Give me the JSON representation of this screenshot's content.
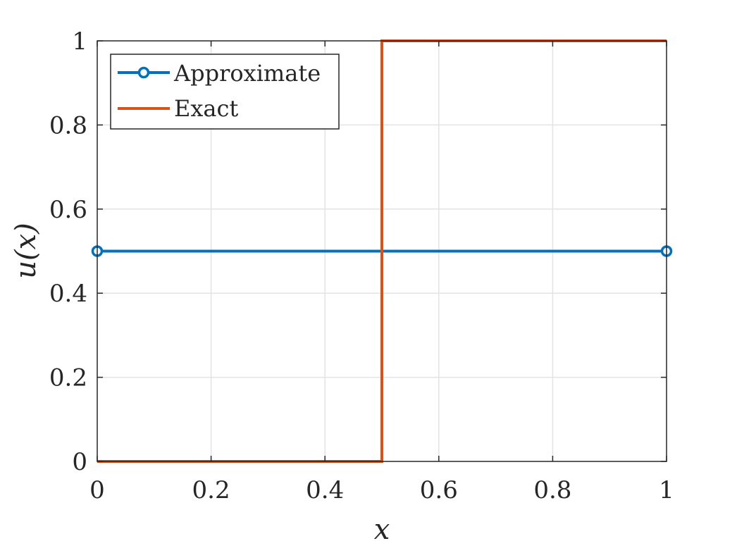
{
  "chart_data": {
    "type": "line",
    "xlabel": "x",
    "ylabel": "u(x)",
    "xlim": [
      0,
      1
    ],
    "ylim": [
      0,
      1
    ],
    "grid": true,
    "legend_position": "top-left",
    "x_ticks": [
      "0",
      "0.2",
      "0.4",
      "0.6",
      "0.8",
      "1"
    ],
    "y_ticks": [
      "0",
      "0.2",
      "0.4",
      "0.6",
      "0.8",
      "1"
    ],
    "series": [
      {
        "name": "Approximate",
        "color": "#0072BD",
        "marker": "circle",
        "x": [
          0,
          1
        ],
        "y": [
          0.5,
          0.5
        ]
      },
      {
        "name": "Exact",
        "color": "#D95319",
        "marker": "none",
        "x": [
          0,
          0.5,
          0.5,
          1
        ],
        "y": [
          0,
          0,
          1,
          1
        ]
      }
    ]
  }
}
